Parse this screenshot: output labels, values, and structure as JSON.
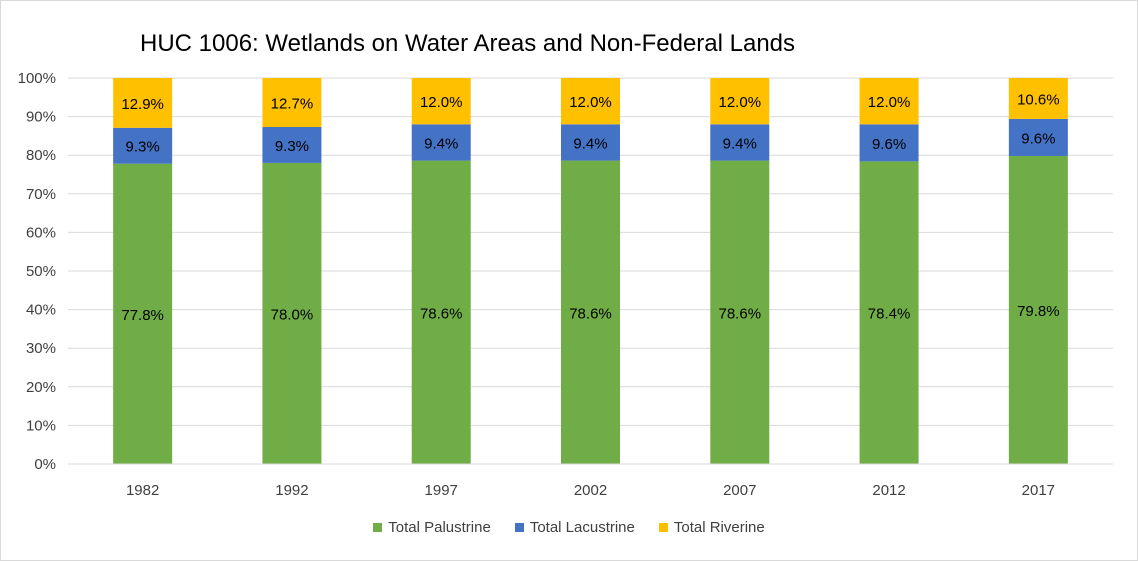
{
  "chart_data": {
    "type": "bar",
    "stacked": true,
    "title": "HUC 1006: Wetlands on Water Areas and Non-Federal Lands",
    "categories": [
      "1982",
      "1992",
      "1997",
      "2002",
      "2007",
      "2012",
      "2017"
    ],
    "series": [
      {
        "name": "Total Palustrine",
        "color": "#70ad47",
        "values": [
          77.8,
          78.0,
          78.6,
          78.6,
          78.6,
          78.4,
          79.8
        ],
        "labels": [
          "77.8%",
          "78.0%",
          "78.6%",
          "78.6%",
          "78.6%",
          "78.4%",
          "79.8%"
        ]
      },
      {
        "name": "Total Lacustrine",
        "color": "#4472c4",
        "values": [
          9.3,
          9.3,
          9.4,
          9.4,
          9.4,
          9.6,
          9.6
        ],
        "labels": [
          "9.3%",
          "9.3%",
          "9.4%",
          "9.4%",
          "9.4%",
          "9.6%",
          "9.6%"
        ]
      },
      {
        "name": "Total Riverine",
        "color": "#ffc000",
        "values": [
          12.9,
          12.7,
          12.0,
          12.0,
          12.0,
          12.0,
          10.6
        ],
        "labels": [
          "12.9%",
          "12.7%",
          "12.0%",
          "12.0%",
          "12.0%",
          "12.0%",
          "10.6%"
        ]
      }
    ],
    "ylim": [
      0,
      100
    ],
    "yticks": [
      "0%",
      "10%",
      "20%",
      "30%",
      "40%",
      "50%",
      "60%",
      "70%",
      "80%",
      "90%",
      "100%"
    ],
    "grid": true,
    "legend_position": "bottom"
  }
}
